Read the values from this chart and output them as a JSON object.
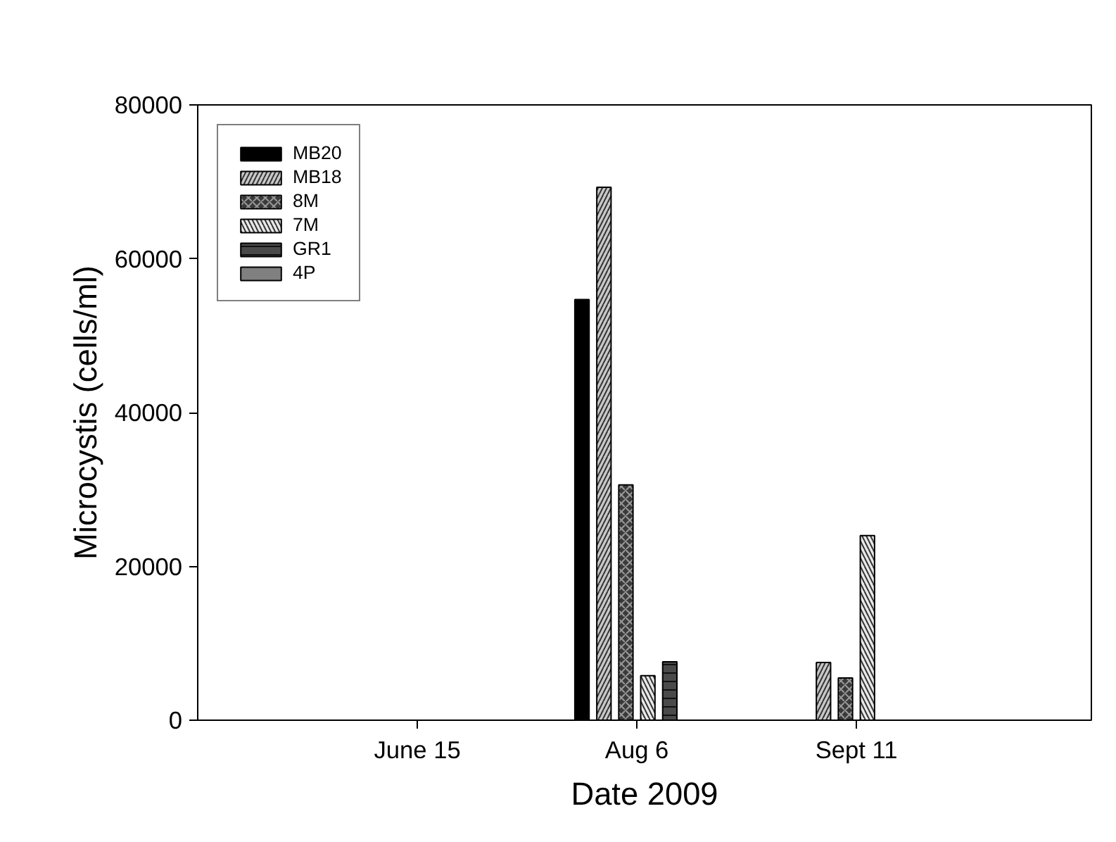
{
  "chart_data": {
    "type": "bar",
    "xlabel": "Date 2009",
    "ylabel": "Microcystis (cells/ml)",
    "categories": [
      "June 15",
      "Aug 6",
      "Sept 11"
    ],
    "ylim": [
      0,
      80000
    ],
    "yticks": [
      0,
      20000,
      40000,
      60000,
      80000
    ],
    "legend": "top left",
    "grid": false,
    "series": [
      {
        "name": "MB20",
        "color": "#000000",
        "values": [
          null,
          54700,
          null
        ]
      },
      {
        "name": "MB18",
        "color": "#c8c8c8",
        "values": [
          null,
          69300,
          7500
        ]
      },
      {
        "name": "8M",
        "color": "#3a3a3a",
        "values": [
          null,
          30600,
          5500
        ]
      },
      {
        "name": "7M",
        "color": "#e8e8e8",
        "values": [
          null,
          5800,
          24000
        ]
      },
      {
        "name": "GR1",
        "color": "#4a4a4a",
        "values": [
          null,
          7600,
          null
        ]
      },
      {
        "name": "4P",
        "color": "#808080",
        "values": [
          null,
          null,
          null
        ]
      }
    ]
  }
}
